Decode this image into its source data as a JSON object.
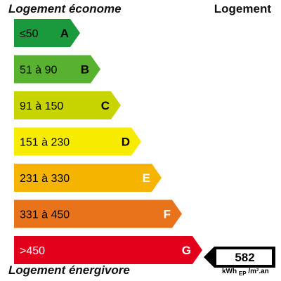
{
  "header": {
    "left": "Logement économe",
    "right": "Logement"
  },
  "footer": {
    "label": "Logement énergivore",
    "unit_main": "kWh",
    "unit_sub": "EP",
    "unit_tail": "/m².an"
  },
  "chart_data": {
    "type": "bar",
    "title": "",
    "categories": [
      "A",
      "B",
      "C",
      "D",
      "E",
      "F",
      "G"
    ],
    "ranges": [
      "≤50",
      "51 à 90",
      "91 à 150",
      "151 à 230",
      "231 à 330",
      "331 à 450",
      ">450"
    ],
    "colors": [
      "#1a9a3c",
      "#58b22f",
      "#c8d400",
      "#f7eb00",
      "#f5b400",
      "#e8731b",
      "#e3001b"
    ],
    "letter_colors": [
      "#000000",
      "#000000",
      "#000000",
      "#000000",
      "#ffffff",
      "#ffffff",
      "#ffffff"
    ],
    "range_colors": [
      "#000000",
      "#000000",
      "#000000",
      "#000000",
      "#000000",
      "#000000",
      "#ffffff"
    ],
    "value": 582,
    "value_class": "G"
  }
}
